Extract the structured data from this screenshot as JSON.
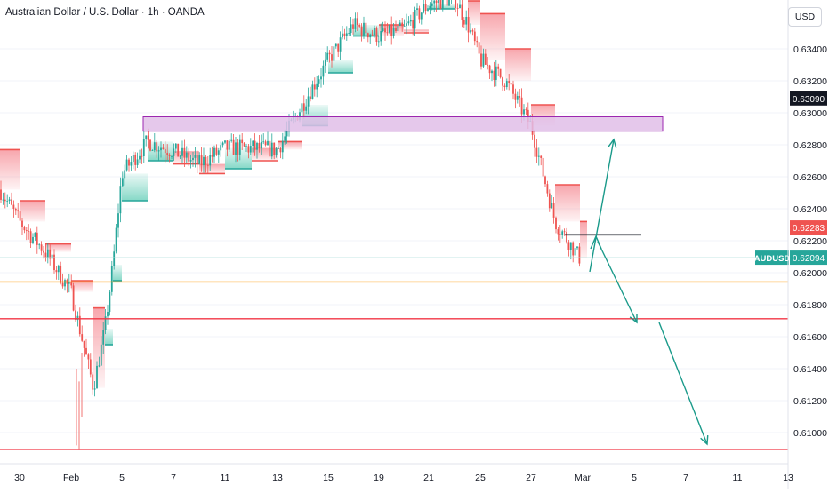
{
  "header": {
    "title": "Australian Dollar / U.S. Dollar · 1h · OANDA",
    "currency": "USD"
  },
  "colors": {
    "up": "#26a69a",
    "down": "#ef5350",
    "band_up": "#7fd6c4",
    "band_down": "#f7a1a8",
    "zone_fill": "#e1bee7",
    "zone_border": "#9c27b0",
    "orange_line": "#ff9800",
    "red_line": "#f23645",
    "arrow": "#1a9a8a",
    "current_price_line": "#b2dfdb",
    "black": "#131722"
  },
  "chart_data": {
    "type": "candlestick",
    "symbol": "AUDUSD",
    "timeframe": "1h",
    "broker": "OANDA",
    "x_ticks": [
      "30",
      "Feb",
      "5",
      "7",
      "11",
      "13",
      "15",
      "19",
      "21",
      "25",
      "27",
      "Mar",
      "5",
      "7",
      "11",
      "13"
    ],
    "y_ticks": [
      0.634,
      0.632,
      0.63,
      0.628,
      0.626,
      0.624,
      0.622,
      0.62,
      0.618,
      0.616,
      0.614,
      0.612,
      0.61
    ],
    "y_tick_labels": [
      "0.63400",
      "0.63200",
      "0.63000",
      "0.62800",
      "0.62600",
      "0.62400",
      "0.62200",
      "0.62000",
      "0.61800",
      "0.61600",
      "0.61400",
      "0.61200",
      "0.61000"
    ],
    "ylim": [
      0.6087,
      0.6372
    ],
    "price_labels": [
      {
        "value": 0.6309,
        "text": "0.63090",
        "style": "dark"
      },
      {
        "value": 0.62283,
        "text": "0.62283",
        "style": "red"
      },
      {
        "value": 0.62094,
        "text": "0.62094",
        "style": "teal",
        "symbol": "AUDUSD"
      }
    ],
    "horizontal_lines": [
      {
        "value": 0.61942,
        "color": "orange"
      },
      {
        "value": 0.61712,
        "color": "red"
      },
      {
        "value": 0.60895,
        "color": "red"
      }
    ],
    "zone": {
      "from": "Feb 6",
      "to": "Mar 6",
      "low": 0.62885,
      "high": 0.62975
    },
    "black_level": {
      "from": "Feb 28 (late)",
      "to": "Mar 6",
      "value": 0.62237
    },
    "trend_band": [
      [
        "Jan 29",
        0.6277,
        "down"
      ],
      [
        "Jan 30",
        0.6245,
        "down"
      ],
      [
        "Jan 31",
        0.6218,
        "down"
      ],
      [
        "Feb 1",
        0.6195,
        "down"
      ],
      [
        "Feb 2",
        0.6178,
        "down"
      ],
      [
        "Feb 3",
        0.6155,
        "up"
      ],
      [
        "Feb 4",
        0.6195,
        "up"
      ],
      [
        "Feb 5",
        0.6245,
        "up"
      ],
      [
        "Feb 6",
        0.627,
        "up"
      ],
      [
        "Feb 7",
        0.6268,
        "down"
      ],
      [
        "Feb 8",
        0.6262,
        "down"
      ],
      [
        "Feb 11",
        0.6265,
        "up"
      ],
      [
        "Feb 12",
        0.627,
        "down"
      ],
      [
        "Feb 13",
        0.6282,
        "down"
      ],
      [
        "Feb 14",
        0.6292,
        "up"
      ],
      [
        "Feb 15",
        0.6325,
        "up"
      ],
      [
        "Feb 16",
        0.6348,
        "up"
      ],
      [
        "Feb 19",
        0.6355,
        "down"
      ],
      [
        "Feb 20",
        0.635,
        "down"
      ],
      [
        "Feb 21",
        0.6365,
        "up"
      ],
      [
        "Feb 22",
        0.6372,
        "up"
      ],
      [
        "Feb 23",
        0.637,
        "down"
      ],
      [
        "Feb 25",
        0.6362,
        "down"
      ],
      [
        "Feb 26",
        0.634,
        "down"
      ],
      [
        "Feb 27",
        0.6305,
        "down"
      ],
      [
        "Feb 28",
        0.6255,
        "down"
      ],
      [
        "Feb 29",
        0.6232,
        "down"
      ]
    ],
    "price_path": [
      [
        "Jan 29",
        0.6252
      ],
      [
        "Jan 30",
        0.6232
      ],
      [
        "Jan 31",
        0.6213
      ],
      [
        "Feb 1",
        0.6188
      ],
      [
        "Feb 2",
        0.6128
      ],
      [
        "Feb 3",
        0.6165
      ],
      [
        "Feb 4",
        0.6205
      ],
      [
        "Feb 5",
        0.6262
      ],
      [
        "Feb 6",
        0.6282
      ],
      [
        "Feb 7",
        0.6276
      ],
      [
        "Feb 8",
        0.6268
      ],
      [
        "Feb 11",
        0.6278
      ],
      [
        "Feb 12",
        0.6278
      ],
      [
        "Feb 13",
        0.6277
      ],
      [
        "Feb 14",
        0.6305
      ],
      [
        "Feb 15",
        0.6333
      ],
      [
        "Feb 16",
        0.6355
      ],
      [
        "Feb 19",
        0.6348
      ],
      [
        "Feb 20",
        0.6352
      ],
      [
        "Feb 21",
        0.6368
      ],
      [
        "Feb 22",
        0.6372
      ],
      [
        "Feb 23",
        0.6355
      ],
      [
        "Feb 25",
        0.6333
      ],
      [
        "Feb 26",
        0.632
      ],
      [
        "Feb 27",
        0.6292
      ],
      [
        "Feb 28",
        0.6232
      ],
      [
        "Feb 29",
        0.6209
      ]
    ],
    "projection_arrows": [
      {
        "from": [
          "Feb 29",
          0.6202
        ],
        "to": [
          "Mar 6",
          0.6282
        ]
      },
      {
        "from": [
          "Feb 29",
          0.6222
        ],
        "to": [
          "Mar 5",
          0.6172
        ]
      },
      {
        "from": [
          "Mar 6",
          0.6172
        ],
        "to": [
          "Mar 8",
          0.6092
        ]
      }
    ]
  }
}
